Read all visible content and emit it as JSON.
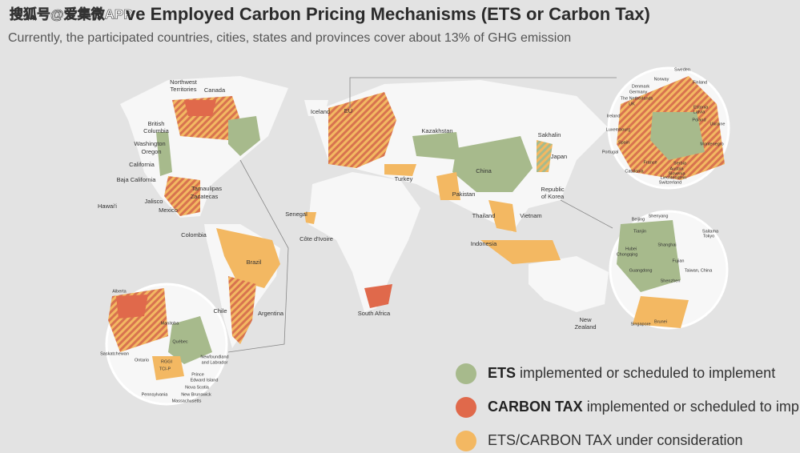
{
  "watermark": "搜狐号@爱集微APP",
  "header": {
    "title": "ve Employed Carbon Pricing Mechanisms (ETS or Carbon Tax)",
    "subtitle": "Currently, the participated countries, cities, states and provinces cover about 13% of GHG emission"
  },
  "map_labels": [
    "Northwest",
    "Territories",
    "Canada",
    "British",
    "Columbia",
    "Washington",
    "Oregon",
    "California",
    "Baja California",
    "Tamaulipas",
    "Zacatecas",
    "Jalisco",
    "Mexico",
    "Hawai'i",
    "Colombia",
    "Brazil",
    "Chile",
    "Argentina",
    "Iceland",
    "EU",
    "Kazakhstan",
    "Sakhalin",
    "Japan",
    "China",
    "Turkey",
    "Pakistan",
    "Republic",
    "of Korea",
    "Senegal",
    "Thailand",
    "Vietnam",
    "Côte d'Ivoire",
    "Indonesia",
    "South Africa",
    "New",
    "Zealand"
  ],
  "europe_inset": [
    "Sweden",
    "Norway",
    "Finland",
    "Denmark",
    "Germany",
    "The Netherlands",
    "UK",
    "Ireland",
    "Estonia",
    "Latvia",
    "Poland",
    "Ukraine",
    "Luxembourg",
    "Spain",
    "Portugal",
    "Montenegro",
    "France",
    "Serbia",
    "Austria",
    "Slovenia",
    "Liechtenstein",
    "Switzerland",
    "Catalonia"
  ],
  "asia_inset": [
    "Shenyang",
    "Beijing",
    "Tianjin",
    "Saitama",
    "Tokyo",
    "Shanghai",
    "Hubei",
    "Chongqing",
    "Fujian",
    "Taiwan, China",
    "Guangdong",
    "Shenzhen",
    "Brunei",
    "Singapore"
  ],
  "canada_inset": [
    "Alberta",
    "Manitoba",
    "Saskatchewan",
    "Québec",
    "Ontario",
    "RGGI",
    "TCI-P",
    "Newfoundland",
    "and Labrador",
    "Prince",
    "Edward Island",
    "Nova Scotia",
    "New Brunswick",
    "Pennsylvania",
    "Massachusetts"
  ],
  "legend": [
    {
      "bold": "ETS",
      "text": "implemented or scheduled to implement",
      "color": "#a7ba8c"
    },
    {
      "bold": "CARBON TAX",
      "text": "implemented or scheduled to implement",
      "color": "#e0694b"
    },
    {
      "text": "ETS/CARBON TAX under consideration",
      "color": "#f3b862"
    }
  ]
}
